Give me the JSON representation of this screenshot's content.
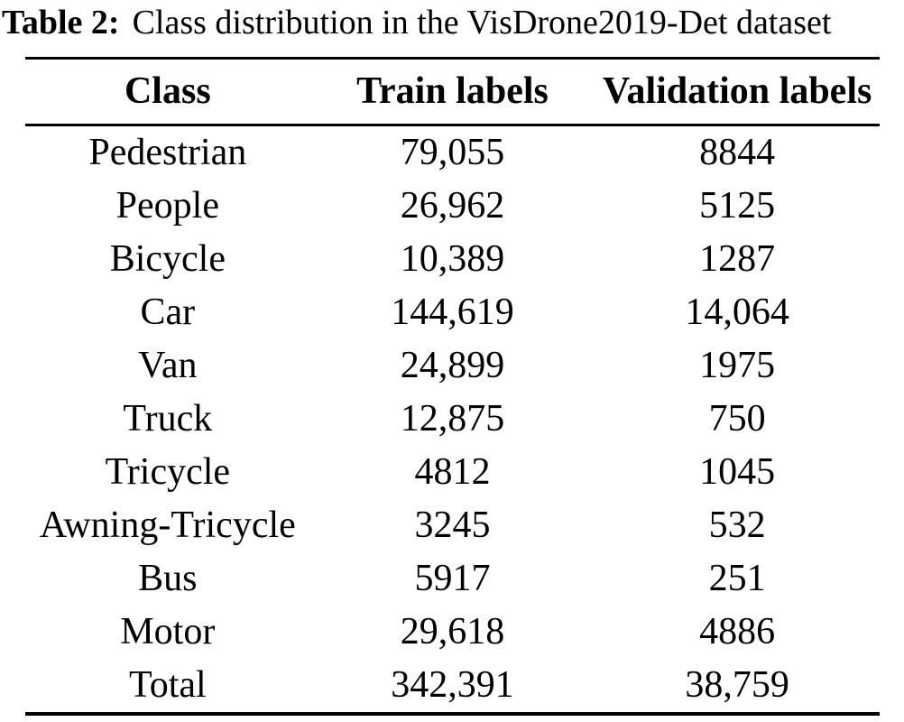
{
  "caption": {
    "label": "Table 2:",
    "text": "Class distribution in the VisDrone2019-Det dataset"
  },
  "table": {
    "columns": [
      "Class",
      "Train labels",
      "Validation labels"
    ],
    "rows": [
      [
        "Pedestrian",
        "79,055",
        "8844"
      ],
      [
        "People",
        "26,962",
        "5125"
      ],
      [
        "Bicycle",
        "10,389",
        "1287"
      ],
      [
        "Car",
        "144,619",
        "14,064"
      ],
      [
        "Van",
        "24,899",
        "1975"
      ],
      [
        "Truck",
        "12,875",
        "750"
      ],
      [
        "Tricycle",
        "4812",
        "1045"
      ],
      [
        "Awning-Tricycle",
        "3245",
        "532"
      ],
      [
        "Bus",
        "5917",
        "251"
      ],
      [
        "Motor",
        "29,618",
        "4886"
      ],
      [
        "Total",
        "342,391",
        "38,759"
      ]
    ]
  },
  "colors": {
    "text": "#000000",
    "background": "#ffffff",
    "rule": "#000000"
  }
}
